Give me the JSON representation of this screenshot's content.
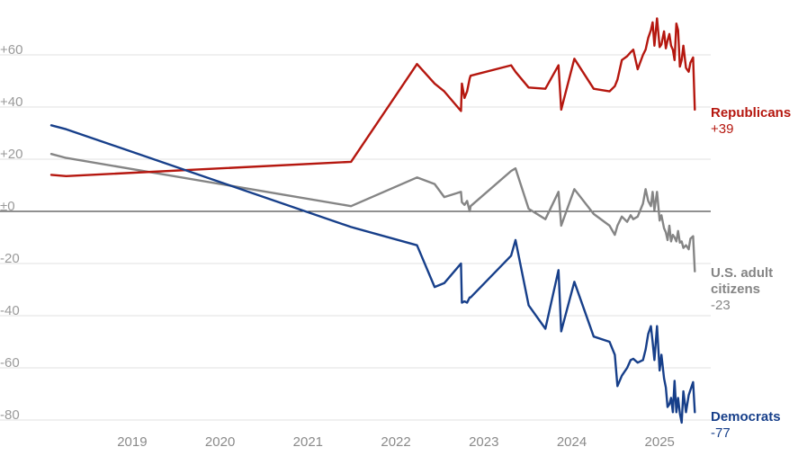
{
  "chart_data": {
    "type": "line",
    "title": "",
    "xlabel": "",
    "ylabel": "",
    "ylim": [
      -80,
      75
    ],
    "xlim": [
      2018.1,
      2025.55
    ],
    "y_ticks": [
      60,
      40,
      20,
      0,
      -20,
      -40,
      -60,
      -80
    ],
    "y_tick_labels": [
      "+60",
      "+40",
      "+20",
      "±0",
      "-20",
      "-40",
      "-60",
      "-80"
    ],
    "x_ticks": [
      2019,
      2020,
      2021,
      2022,
      2023,
      2024,
      2025
    ],
    "x_tick_labels": [
      "2019",
      "2020",
      "2021",
      "2022",
      "2023",
      "2024",
      "2025"
    ],
    "grid": "horizontal",
    "zero_line": true,
    "series": [
      {
        "name": "Republicans",
        "end_value_label": "+39",
        "color": "#b5170f",
        "x": [
          2018.13,
          2018.3,
          2021.54,
          2022.29,
          2022.49,
          2022.6,
          2022.79,
          2022.8,
          2022.83,
          2022.86,
          2022.89,
          2022.9,
          2023.36,
          2023.41,
          2023.56,
          2023.75,
          2023.9,
          2023.93,
          2024.08,
          2024.3,
          2024.48,
          2024.54,
          2024.57,
          2024.62,
          2024.68,
          2024.72,
          2024.75,
          2024.8,
          2024.86,
          2024.89,
          2024.92,
          2024.95,
          2024.97,
          2024.99,
          2025.02,
          2025.05,
          2025.07,
          2025.1,
          2025.12,
          2025.14,
          2025.16,
          2025.18,
          2025.2,
          2025.22,
          2025.24,
          2025.26,
          2025.28,
          2025.3,
          2025.32,
          2025.35,
          2025.38,
          2025.4,
          2025.43,
          2025.45
        ],
        "y": [
          14,
          13.5,
          19,
          56.5,
          49,
          46,
          38.5,
          49,
          43.5,
          46,
          51,
          52,
          56,
          53.5,
          47.5,
          47,
          56,
          39,
          58.5,
          47,
          46,
          48,
          50.5,
          58,
          59.5,
          61,
          62,
          54.5,
          60,
          62,
          66.5,
          69.5,
          72.5,
          63.5,
          74,
          63,
          64,
          69,
          62.5,
          65.5,
          68,
          63.5,
          62,
          58,
          72,
          69.5,
          55.5,
          58,
          63.5,
          55,
          53.5,
          57,
          59,
          39
        ]
      },
      {
        "name": "U.S. adult citizens",
        "end_value_label": "-23",
        "color": "#858585",
        "x": [
          2018.13,
          2018.3,
          2021.54,
          2022.29,
          2022.49,
          2022.6,
          2022.79,
          2022.8,
          2022.83,
          2022.86,
          2022.89,
          2022.9,
          2023.36,
          2023.41,
          2023.56,
          2023.75,
          2023.9,
          2023.93,
          2024.08,
          2024.3,
          2024.48,
          2024.54,
          2024.57,
          2024.62,
          2024.68,
          2024.72,
          2024.75,
          2024.8,
          2024.86,
          2024.89,
          2024.92,
          2024.95,
          2024.97,
          2024.99,
          2025.02,
          2025.05,
          2025.07,
          2025.1,
          2025.12,
          2025.14,
          2025.16,
          2025.18,
          2025.2,
          2025.22,
          2025.24,
          2025.26,
          2025.28,
          2025.3,
          2025.32,
          2025.35,
          2025.38,
          2025.4,
          2025.43,
          2025.45
        ],
        "y": [
          22,
          20.5,
          2,
          13,
          10.5,
          5.5,
          7.5,
          3.5,
          2.5,
          4,
          0,
          2,
          15.5,
          16.5,
          1,
          -3,
          7.5,
          -5.5,
          8.5,
          -1,
          -5.5,
          -9,
          -5.5,
          -2,
          -4,
          -1.5,
          -3,
          -2,
          3,
          8.5,
          4,
          2,
          7.5,
          0.5,
          7.5,
          -3.5,
          -1.5,
          -6.5,
          -8,
          -11,
          -5.5,
          -11.5,
          -9,
          -10,
          -11.5,
          -7.5,
          -12,
          -11.5,
          -14,
          -13,
          -14.5,
          -10.5,
          -9.5,
          -23
        ]
      },
      {
        "name": "Democrats",
        "end_value_label": "-77",
        "color": "#173f8a",
        "x": [
          2018.13,
          2018.3,
          2021.54,
          2022.29,
          2022.49,
          2022.6,
          2022.79,
          2022.8,
          2022.83,
          2022.86,
          2022.89,
          2022.9,
          2023.36,
          2023.41,
          2023.56,
          2023.75,
          2023.9,
          2023.93,
          2024.08,
          2024.3,
          2024.48,
          2024.54,
          2024.57,
          2024.62,
          2024.68,
          2024.72,
          2024.75,
          2024.8,
          2024.86,
          2024.89,
          2024.92,
          2024.95,
          2024.97,
          2024.99,
          2025.02,
          2025.05,
          2025.07,
          2025.1,
          2025.12,
          2025.14,
          2025.16,
          2025.18,
          2025.2,
          2025.22,
          2025.24,
          2025.26,
          2025.28,
          2025.3,
          2025.32,
          2025.35,
          2025.38,
          2025.4,
          2025.43,
          2025.45
        ],
        "y": [
          33,
          31.5,
          -6,
          -13,
          -29,
          -27.5,
          -20,
          -35,
          -34.5,
          -35,
          -33,
          -33,
          -17,
          -11,
          -36,
          -45,
          -22.5,
          -46,
          -27,
          -48,
          -50,
          -55,
          -67,
          -63,
          -60,
          -57,
          -56.5,
          -58,
          -57,
          -53,
          -47,
          -44,
          -50,
          -57,
          -44,
          -61,
          -55,
          -64,
          -67.5,
          -75,
          -74,
          -71.5,
          -77,
          -65,
          -77,
          -71.5,
          -77.5,
          -81,
          -69,
          -77,
          -70.5,
          -68.5,
          -65.5,
          -77
        ]
      }
    ]
  }
}
